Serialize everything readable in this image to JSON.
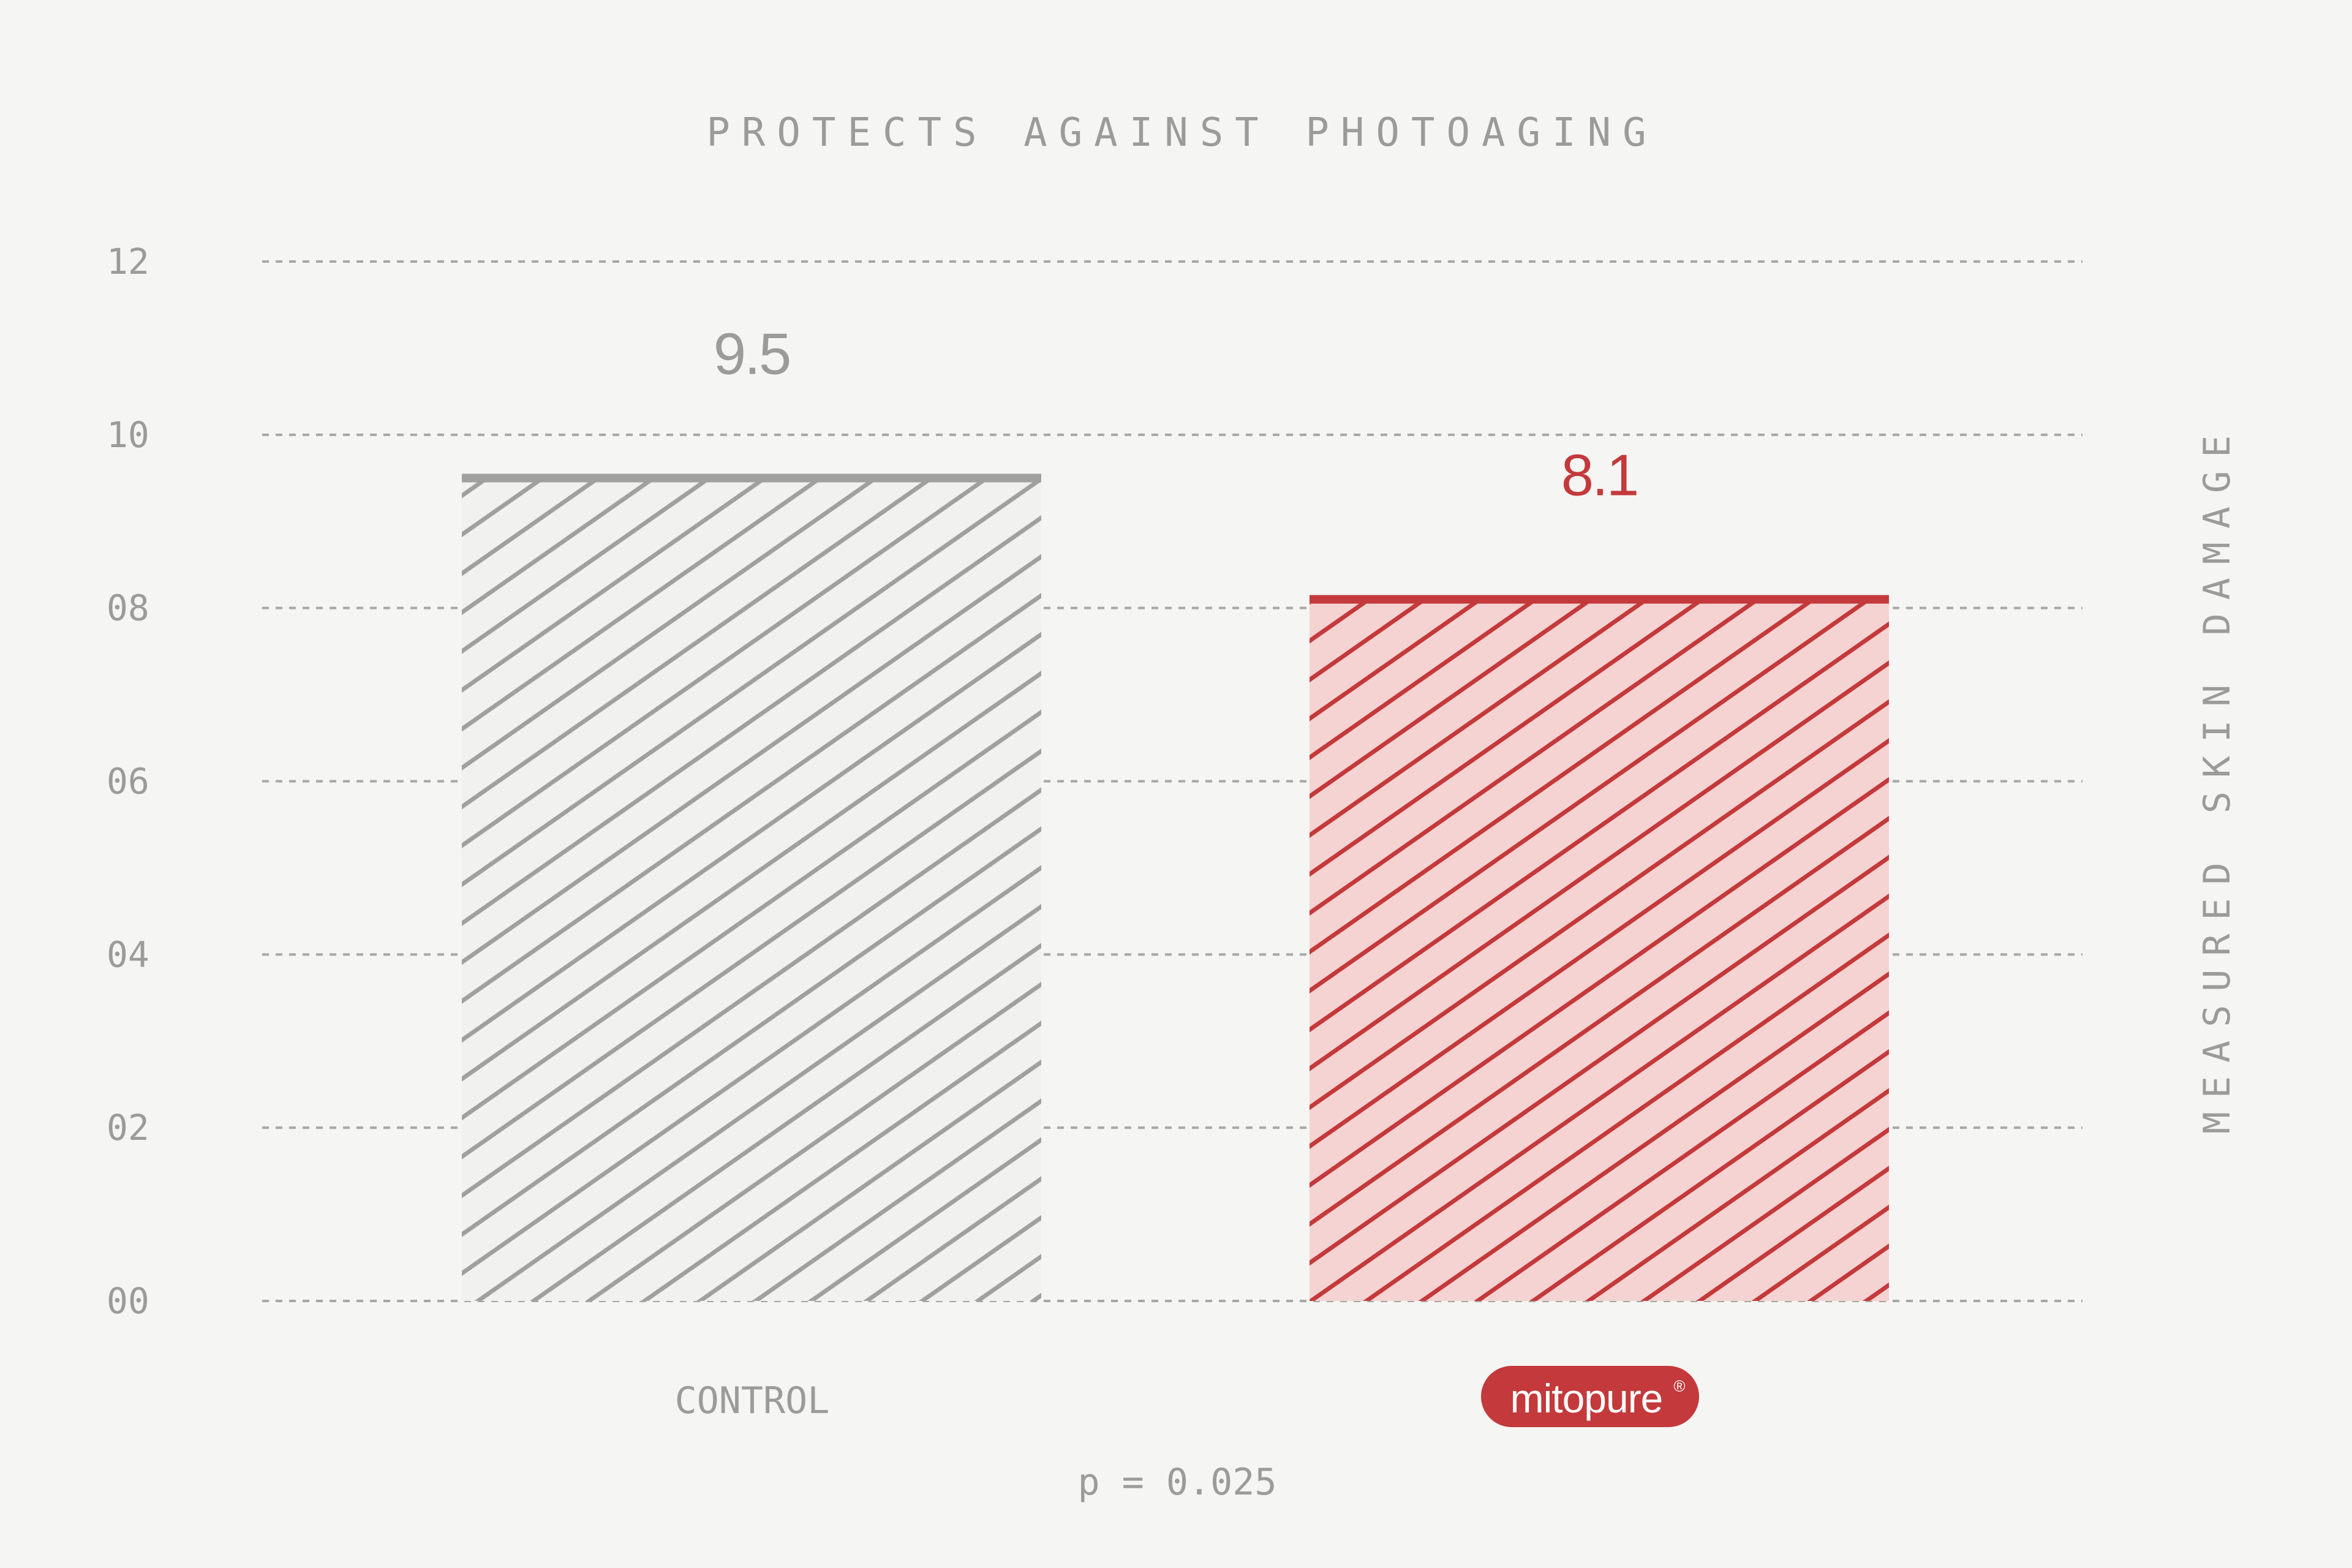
{
  "chart_data": {
    "type": "bar",
    "title": "PROTECTS AGAINST PHOTOAGING",
    "ylabel": "MEASURED SKIN DAMAGE",
    "xlabel": "",
    "categories": [
      "CONTROL",
      "mitopure"
    ],
    "values": [
      9.5,
      8.1
    ],
    "value_labels": [
      "9.5",
      "8.1"
    ],
    "ylim": [
      0,
      12
    ],
    "yticks": [
      {
        "value": 0,
        "label": "00"
      },
      {
        "value": 2,
        "label": "02"
      },
      {
        "value": 4,
        "label": "04"
      },
      {
        "value": 6,
        "label": "06"
      },
      {
        "value": 8,
        "label": "08"
      },
      {
        "value": 10,
        "label": "10"
      },
      {
        "value": 12,
        "label": "12"
      }
    ],
    "grid": true,
    "legend": "none",
    "annotation": "p = 0.025",
    "brand_mark": "®",
    "colors": {
      "background": "#f5f5f3",
      "control": "#a0a09e",
      "control_fill": "#f1f1ef",
      "brand": "#c4393b",
      "brand_fill": "#f5d3d2",
      "text": "#9b9b99",
      "grid": "#a7a7a5"
    }
  }
}
